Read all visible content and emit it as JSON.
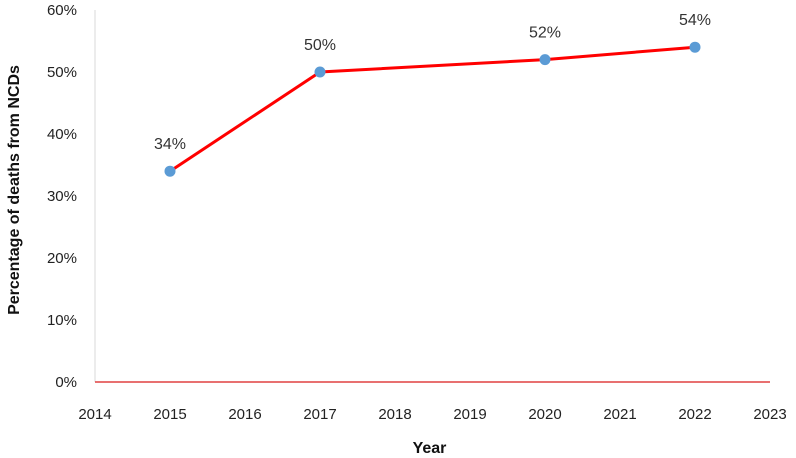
{
  "chart_data": {
    "type": "line",
    "title": "",
    "xlabel": "Year",
    "ylabel": "Percentage of deaths from NCDs",
    "x": [
      2015,
      2017,
      2020,
      2022
    ],
    "series": [
      {
        "values": [
          34,
          50,
          52,
          54
        ],
        "data_labels": [
          "34%",
          "50%",
          "52%",
          "54%"
        ]
      }
    ],
    "xlim": [
      2014,
      2023
    ],
    "ylim": [
      0,
      60
    ],
    "x_ticks": [
      "2014",
      "2015",
      "2016",
      "2017",
      "2018",
      "2019",
      "2020",
      "2021",
      "2022",
      "2023"
    ],
    "y_ticks": [
      "0%",
      "10%",
      "20%",
      "30%",
      "40%",
      "50%",
      "60%"
    ],
    "grid": false,
    "legend": "none",
    "colors": {
      "line": "#ff0000",
      "marker": "#5b9bd5",
      "baseline": "#e04040"
    }
  }
}
